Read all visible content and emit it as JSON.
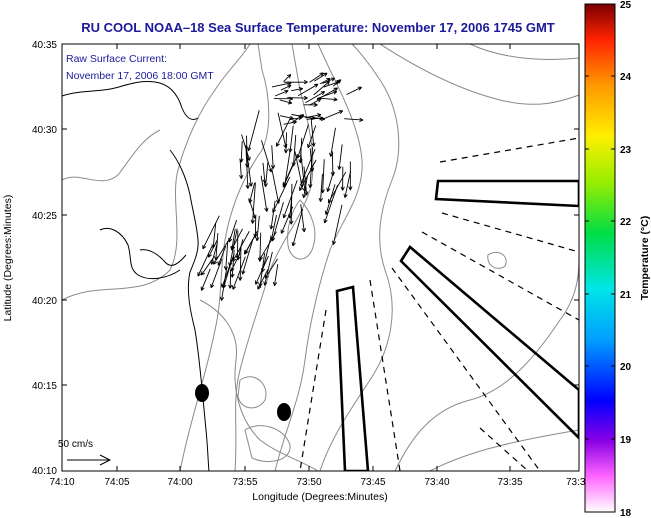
{
  "title": "RU COOL  NOAA–18  Sea Surface Temperature:  November 17, 2006 1745 GMT",
  "annotation": {
    "line1": "Raw Surface Current:",
    "line2": "November 17, 2006 18:00 GMT"
  },
  "axes": {
    "xlabel": "Longitude (Degrees:Minutes)",
    "ylabel": "Latitude (Degrees:Minutes)",
    "x_ticks": [
      "74:10",
      "74:05",
      "74:00",
      "73:55",
      "73:50",
      "73:45",
      "73:40",
      "73:35",
      "73:3"
    ],
    "y_ticks": [
      "40:10",
      "40:15",
      "40:20",
      "40:25",
      "40:30",
      "40:35"
    ]
  },
  "colorbar": {
    "label": "Temperature (°C)",
    "ticks": [
      "18",
      "19",
      "20",
      "21",
      "22",
      "23",
      "24",
      "25"
    ],
    "min": 18,
    "max": 25
  },
  "scale_label": "50 cm/s",
  "colors": {
    "title": "#1a1a9a",
    "contour": "#8a8a8a",
    "coast": "#000000",
    "frame": "#000000"
  },
  "icons": [
    "current-vector-arrow",
    "buoy-marker",
    "transect-dashed-line",
    "outlined-zone"
  ]
}
